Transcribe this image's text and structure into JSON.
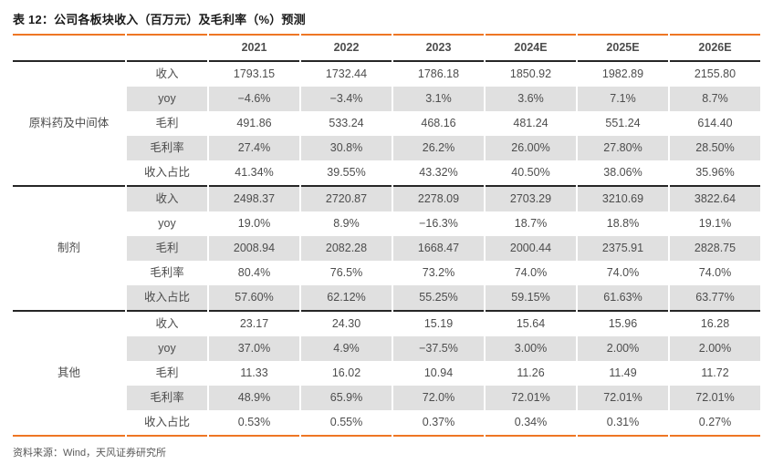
{
  "title": "表 12：公司各板块收入（百万元）及毛利率（%）预测",
  "source": "资料来源：Wind，天风证券研究所",
  "colors": {
    "accent_orange": "#ee7624",
    "dark_line": "#262626",
    "stripe_gray": "#e0e0e0",
    "text_gray": "#4d4d4d"
  },
  "chart_data": {
    "type": "table",
    "columns": [
      "2021",
      "2022",
      "2023",
      "2024E",
      "2025E",
      "2026E"
    ],
    "groups": [
      {
        "name": "原料药及中间体",
        "rows": [
          {
            "label": "收入",
            "values": [
              "1793.15",
              "1732.44",
              "1786.18",
              "1850.92",
              "1982.89",
              "2155.80"
            ]
          },
          {
            "label": "yoy",
            "values": [
              "−4.6%",
              "−3.4%",
              "3.1%",
              "3.6%",
              "7.1%",
              "8.7%"
            ]
          },
          {
            "label": "毛利",
            "values": [
              "491.86",
              "533.24",
              "468.16",
              "481.24",
              "551.24",
              "614.40"
            ]
          },
          {
            "label": "毛利率",
            "values": [
              "27.4%",
              "30.8%",
              "26.2%",
              "26.00%",
              "27.80%",
              "28.50%"
            ]
          },
          {
            "label": "收入占比",
            "values": [
              "41.34%",
              "39.55%",
              "43.32%",
              "40.50%",
              "38.06%",
              "35.96%"
            ]
          }
        ]
      },
      {
        "name": "制剂",
        "rows": [
          {
            "label": "收入",
            "values": [
              "2498.37",
              "2720.87",
              "2278.09",
              "2703.29",
              "3210.69",
              "3822.64"
            ]
          },
          {
            "label": "yoy",
            "values": [
              "19.0%",
              "8.9%",
              "−16.3%",
              "18.7%",
              "18.8%",
              "19.1%"
            ]
          },
          {
            "label": "毛利",
            "values": [
              "2008.94",
              "2082.28",
              "1668.47",
              "2000.44",
              "2375.91",
              "2828.75"
            ]
          },
          {
            "label": "毛利率",
            "values": [
              "80.4%",
              "76.5%",
              "73.2%",
              "74.0%",
              "74.0%",
              "74.0%"
            ]
          },
          {
            "label": "收入占比",
            "values": [
              "57.60%",
              "62.12%",
              "55.25%",
              "59.15%",
              "61.63%",
              "63.77%"
            ]
          }
        ]
      },
      {
        "name": "其他",
        "rows": [
          {
            "label": "收入",
            "values": [
              "23.17",
              "24.30",
              "15.19",
              "15.64",
              "15.96",
              "16.28"
            ]
          },
          {
            "label": "yoy",
            "values": [
              "37.0%",
              "4.9%",
              "−37.5%",
              "3.00%",
              "2.00%",
              "2.00%"
            ]
          },
          {
            "label": "毛利",
            "values": [
              "11.33",
              "16.02",
              "10.94",
              "11.26",
              "11.49",
              "11.72"
            ]
          },
          {
            "label": "毛利率",
            "values": [
              "48.9%",
              "65.9%",
              "72.0%",
              "72.01%",
              "72.01%",
              "72.01%"
            ]
          },
          {
            "label": "收入占比",
            "values": [
              "0.53%",
              "0.55%",
              "0.37%",
              "0.34%",
              "0.31%",
              "0.27%"
            ]
          }
        ]
      }
    ]
  }
}
